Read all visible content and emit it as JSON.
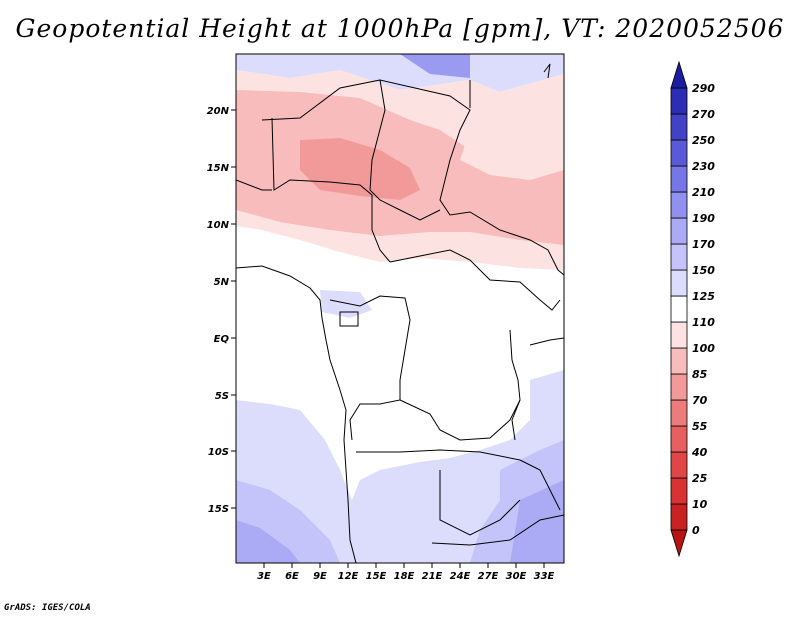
{
  "title": "Geopotential Height at 1000hPa [gpm], VT: 2020052506",
  "credit": "GrADS: IGES/COLA",
  "map": {
    "lat_labels": [
      "20N",
      "15N",
      "10N",
      "5N",
      "EQ",
      "5S",
      "10S",
      "15S"
    ],
    "lon_labels": [
      "3E",
      "6E",
      "9E",
      "12E",
      "15E",
      "18E",
      "21E",
      "24E",
      "27E",
      "30E",
      "33E"
    ]
  },
  "colorbar": {
    "levels": [
      "0",
      "10",
      "25",
      "40",
      "55",
      "70",
      "85",
      "100",
      "110",
      "125",
      "150",
      "170",
      "190",
      "210",
      "230",
      "250",
      "270",
      "290"
    ],
    "colors": [
      "#b81414",
      "#c92222",
      "#d83232",
      "#e04646",
      "#e66060",
      "#ec7c7c",
      "#f29a9a",
      "#f8bcbc",
      "#fde2e2",
      "#ffffff",
      "#dcdcfc",
      "#c4c4fa",
      "#ababf5",
      "#9090ef",
      "#7676e6",
      "#5a5ad8",
      "#4242c6",
      "#2c2cb4",
      "#1c1ca0"
    ]
  }
}
